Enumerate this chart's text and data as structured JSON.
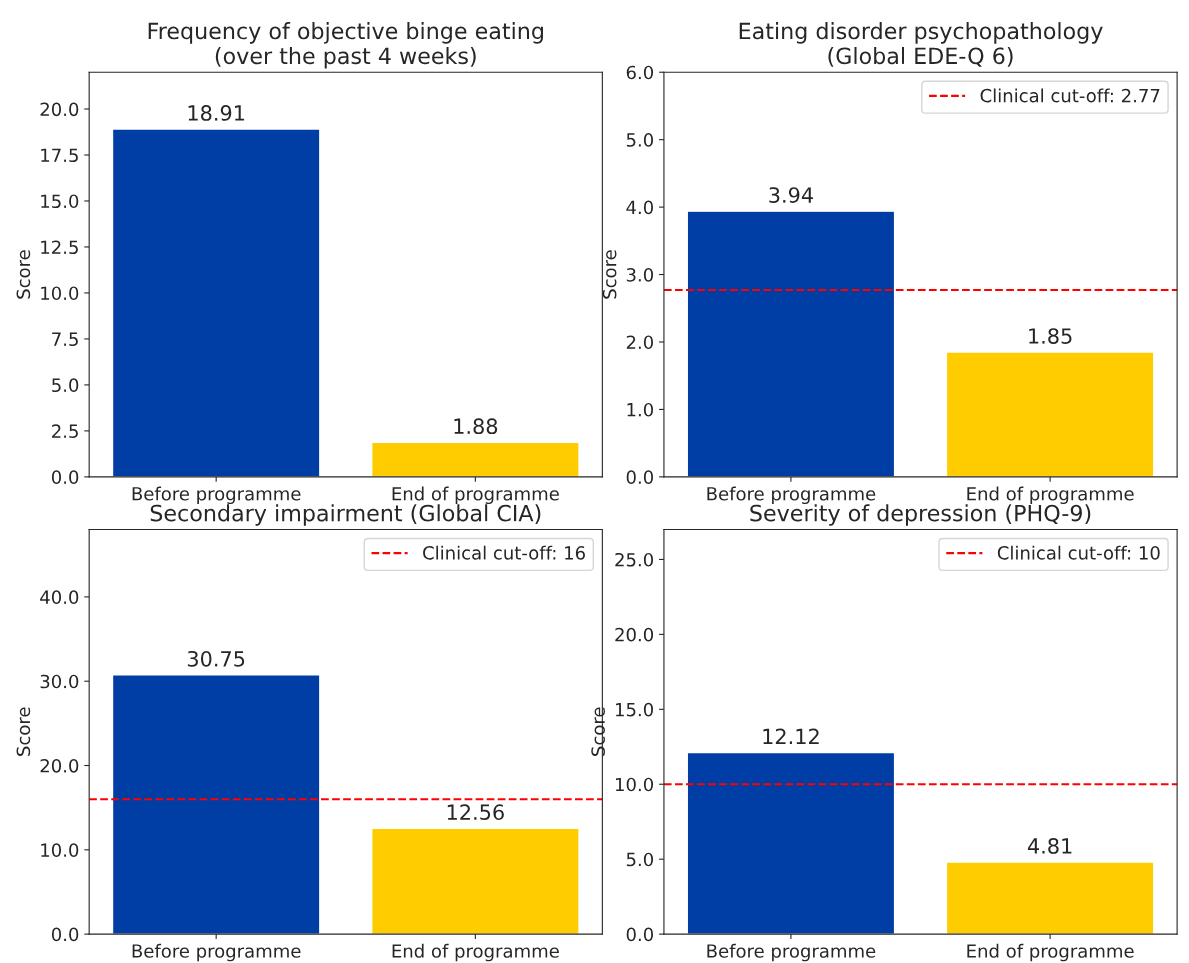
{
  "chart_data": [
    {
      "type": "bar",
      "title": "Frequency of objective binge eating\n(over the past 4 weeks)",
      "ylabel": "Score",
      "categories": [
        "Before programme",
        "End of programme"
      ],
      "values": [
        18.91,
        1.88
      ],
      "colors": [
        "#003da5",
        "#ffcc00"
      ],
      "data_labels": true,
      "ylim": [
        0,
        22
      ],
      "yticks": [
        {
          "value": 0,
          "label": "0.0"
        },
        {
          "value": 2.5,
          "label": "2.5"
        },
        {
          "value": 5,
          "label": "5.0"
        },
        {
          "value": 7.5,
          "label": "7.5"
        },
        {
          "value": 10,
          "label": "10.0"
        },
        {
          "value": 12.5,
          "label": "12.5"
        },
        {
          "value": 15,
          "label": "15.0"
        },
        {
          "value": 17.5,
          "label": "17.5"
        },
        {
          "value": 20,
          "label": "20.0"
        }
      ]
    },
    {
      "type": "bar",
      "title": "Eating disorder psychopathology\n(Global EDE-Q 6)",
      "ylabel": "Score",
      "categories": [
        "Before programme",
        "End of programme"
      ],
      "values": [
        3.94,
        1.85
      ],
      "colors": [
        "#003da5",
        "#ffcc00"
      ],
      "data_labels": true,
      "ylim": [
        0,
        6
      ],
      "yticks": [
        {
          "value": 0,
          "label": "0.0"
        },
        {
          "value": 1,
          "label": "1.0"
        },
        {
          "value": 2,
          "label": "2.0"
        },
        {
          "value": 3,
          "label": "3.0"
        },
        {
          "value": 4,
          "label": "4.0"
        },
        {
          "value": 5,
          "label": "5.0"
        },
        {
          "value": 6,
          "label": "6.0"
        }
      ],
      "ref_lines": [
        {
          "axis": "y",
          "value": 2.77,
          "label": "Clinical cut-off: 2.77",
          "color": "#ff0000",
          "line_style": "dashed"
        }
      ],
      "legend": "top right"
    },
    {
      "type": "bar",
      "title": "Secondary impairment (Global CIA)",
      "ylabel": "Score",
      "categories": [
        "Before programme",
        "End of programme"
      ],
      "values": [
        30.75,
        12.56
      ],
      "colors": [
        "#003da5",
        "#ffcc00"
      ],
      "data_labels": true,
      "ylim": [
        0,
        48
      ],
      "yticks": [
        {
          "value": 0,
          "label": "0.0"
        },
        {
          "value": 10,
          "label": "10.0"
        },
        {
          "value": 20,
          "label": "20.0"
        },
        {
          "value": 30,
          "label": "30.0"
        },
        {
          "value": 40,
          "label": "40.0"
        }
      ],
      "ref_lines": [
        {
          "axis": "y",
          "value": 16,
          "label": "Clinical cut-off: 16",
          "color": "#ff0000",
          "line_style": "dashed"
        }
      ],
      "legend": "top right"
    },
    {
      "type": "bar",
      "title": "Severity of depression (PHQ-9)",
      "ylabel": "Score",
      "categories": [
        "Before programme",
        "End of programme"
      ],
      "values": [
        12.12,
        4.81
      ],
      "colors": [
        "#003da5",
        "#ffcc00"
      ],
      "data_labels": true,
      "ylim": [
        0,
        27
      ],
      "yticks": [
        {
          "value": 0,
          "label": "0.0"
        },
        {
          "value": 5,
          "label": "5.0"
        },
        {
          "value": 10,
          "label": "10.0"
        },
        {
          "value": 15,
          "label": "15.0"
        },
        {
          "value": 20,
          "label": "20.0"
        },
        {
          "value": 25,
          "label": "25.0"
        }
      ],
      "ref_lines": [
        {
          "axis": "y",
          "value": 10,
          "label": "Clinical cut-off: 10",
          "color": "#ff0000",
          "line_style": "dashed"
        }
      ],
      "legend": "top right"
    }
  ]
}
